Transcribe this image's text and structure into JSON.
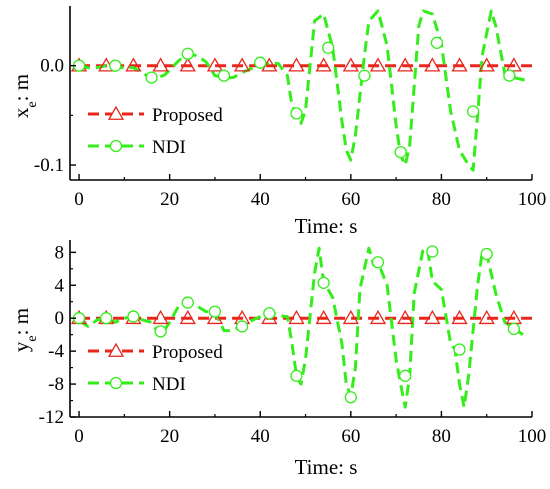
{
  "chart_data": [
    {
      "type": "line",
      "ylabel_main": "x",
      "ylabel_sub": "e",
      "ylabel_unit": ": m",
      "xlabel": "Time: s",
      "xlim": [
        -2,
        100
      ],
      "ylim": [
        -0.115,
        0.06
      ],
      "xticks": [
        0,
        20,
        40,
        60,
        80,
        100
      ],
      "yticks": [
        -0.1,
        0.0
      ],
      "ytick_labels": [
        "-0.1",
        "0.0"
      ],
      "legend_position": "lower-left",
      "series": [
        {
          "name": "Proposed",
          "color": "#e8261c",
          "marker": "triangle",
          "line": "dashed",
          "x": [
            0,
            6,
            12,
            18,
            24,
            30,
            36,
            42,
            48,
            54,
            60,
            66,
            72,
            78,
            84,
            90,
            96,
            100
          ],
          "y": [
            0,
            0,
            0,
            0,
            0,
            0,
            0,
            0,
            0,
            0,
            0,
            0,
            0,
            0,
            0,
            0,
            0,
            0
          ]
        },
        {
          "name": "NDI",
          "color": "#33ee1a",
          "marker": "circle",
          "line": "dashed",
          "x": [
            0,
            3,
            6,
            9,
            12,
            15,
            17,
            19,
            22,
            24,
            26,
            28,
            30,
            32,
            34,
            36,
            38,
            40,
            42,
            44,
            46,
            47,
            48,
            49,
            50,
            52,
            54,
            56,
            58,
            59,
            60,
            61,
            63,
            64,
            66,
            68,
            70,
            71,
            72,
            73,
            75,
            76,
            78,
            80,
            82,
            84,
            86,
            87,
            88,
            89,
            91,
            92,
            94,
            96,
            98,
            99
          ],
          "y": [
            0,
            -0.003,
            0,
            -0.002,
            -0.002,
            -0.01,
            -0.013,
            -0.009,
            0.005,
            0.012,
            0.01,
            0.004,
            -0.01,
            -0.012,
            -0.012,
            -0.007,
            -0.003,
            0.0,
            0.003,
            0.002,
            -0.01,
            -0.04,
            -0.05,
            -0.058,
            -0.045,
            0.045,
            0.052,
            0.018,
            -0.055,
            -0.085,
            -0.095,
            -0.07,
            0.01,
            0.045,
            0.055,
            0.02,
            -0.06,
            -0.09,
            -0.1,
            -0.08,
            0.04,
            0.055,
            0.052,
            0.022,
            -0.045,
            -0.085,
            -0.1,
            -0.105,
            -0.05,
            0.01,
            0.055,
            0.04,
            -0.008,
            -0.012,
            -0.014,
            -0.015
          ]
        }
      ],
      "ndi_marker_points": {
        "x": [
          0,
          8,
          16,
          24,
          32,
          40,
          48,
          55,
          63,
          71,
          79,
          87,
          95
        ],
        "y": [
          0,
          0,
          -0.012,
          0.012,
          -0.01,
          0.003,
          -0.048,
          0.018,
          -0.01,
          -0.087,
          0.023,
          -0.046,
          -0.01
        ]
      }
    },
    {
      "type": "line",
      "ylabel_main": "y",
      "ylabel_sub": "e",
      "ylabel_unit": ": m",
      "xlabel": "Time: s",
      "xlim": [
        -2,
        100
      ],
      "ylim": [
        -12,
        9.5
      ],
      "xticks": [
        0,
        20,
        40,
        60,
        80,
        100
      ],
      "yticks": [
        -12,
        -8,
        -4,
        0,
        4,
        8
      ],
      "ytick_labels": [
        "-12",
        "-8",
        "-4",
        "0",
        "4",
        "8"
      ],
      "legend_position": "lower-left",
      "series": [
        {
          "name": "Proposed",
          "color": "#e8261c",
          "marker": "triangle",
          "line": "dashed",
          "x": [
            0,
            6,
            12,
            18,
            24,
            30,
            36,
            42,
            48,
            54,
            60,
            66,
            72,
            78,
            84,
            90,
            96,
            100
          ],
          "y": [
            0,
            0,
            0,
            0,
            0,
            0,
            0,
            0,
            0,
            0,
            0,
            0,
            0,
            0,
            0,
            0,
            0,
            0
          ]
        },
        {
          "name": "NDI",
          "color": "#33ee1a",
          "marker": "circle",
          "line": "dashed",
          "x": [
            0,
            2,
            4,
            6,
            8,
            10,
            12,
            14,
            16,
            18,
            20,
            22,
            24,
            26,
            28,
            30,
            32,
            34,
            36,
            38,
            40,
            42,
            44,
            46,
            47,
            48,
            49,
            50,
            52,
            53,
            54,
            56,
            58,
            59,
            60,
            61,
            62,
            64,
            65,
            66,
            68,
            70,
            71,
            72,
            73,
            74,
            76,
            77,
            78,
            80,
            82,
            83,
            84,
            85,
            86,
            88,
            89,
            90,
            92,
            94,
            96,
            98
          ],
          "y": [
            -0.3,
            -1.0,
            -0.2,
            0.0,
            -0.5,
            0.0,
            0.2,
            -0.2,
            -0.5,
            -2.2,
            -0.5,
            1.5,
            2.0,
            1.5,
            0.8,
            0.8,
            -1.5,
            -1.5,
            -0.8,
            -0.3,
            0.2,
            0.8,
            0.3,
            0.2,
            -3.0,
            -7.0,
            -8.0,
            -5.0,
            5.5,
            8.5,
            4.5,
            2.5,
            -3.0,
            -8.0,
            -9.5,
            -6.0,
            3.5,
            8.5,
            6.5,
            6.8,
            4.0,
            -5.0,
            -8.0,
            -10.8,
            -7.0,
            3.0,
            8.5,
            8.2,
            4.5,
            3.5,
            -3.0,
            -3.8,
            -8.0,
            -10.8,
            -7.0,
            4.0,
            8.0,
            7.8,
            3.0,
            -0.5,
            -1.2,
            -2.0
          ]
        }
      ],
      "ndi_marker_points": {
        "x": [
          0,
          6,
          12,
          18,
          24,
          30,
          36,
          42,
          48,
          54,
          60,
          66,
          72,
          78,
          84,
          90,
          96
        ],
        "y": [
          0,
          0,
          0.2,
          -1.6,
          1.9,
          0.8,
          -1.0,
          0.6,
          -7.0,
          4.3,
          -9.6,
          6.8,
          -7.0,
          8.1,
          -3.8,
          7.8,
          -1.3
        ]
      }
    }
  ]
}
